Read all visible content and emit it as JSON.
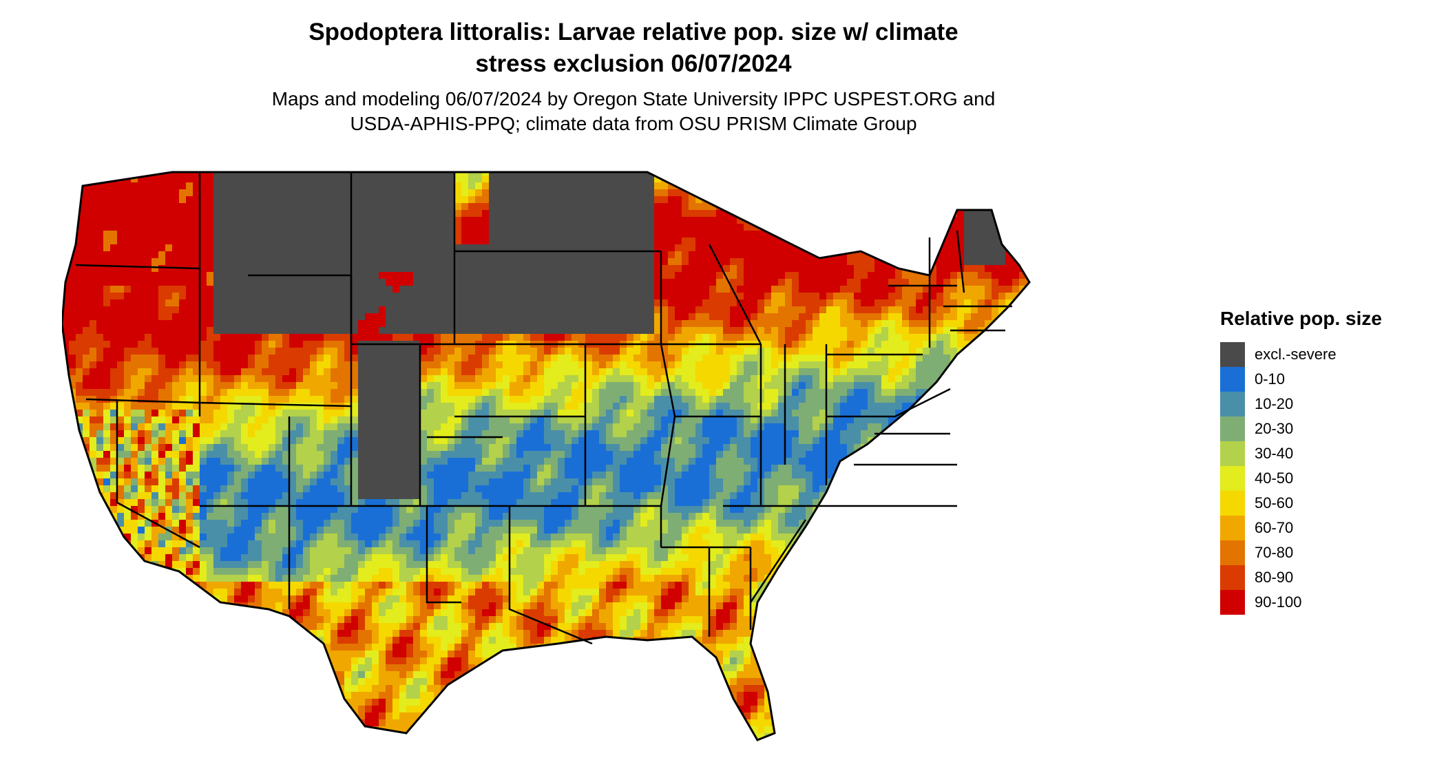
{
  "title_line1": "Spodoptera littoralis: Larvae relative pop. size w/ climate",
  "title_line2": "stress exclusion 06/07/2024",
  "subtitle_line1": "Maps and modeling 06/07/2024 by Oregon State University IPPC USPEST.ORG and",
  "subtitle_line2": "USDA-APHIS-PPQ; climate data from OSU PRISM Climate Group",
  "legend": {
    "title": "Relative pop. size",
    "items": [
      {
        "label": "excl.-severe",
        "color": "#4a4a4a"
      },
      {
        "label": "0-10",
        "color": "#1a6fd6"
      },
      {
        "label": "10-20",
        "color": "#4a8fa8"
      },
      {
        "label": "20-30",
        "color": "#7fae74"
      },
      {
        "label": "30-40",
        "color": "#b3d14a"
      },
      {
        "label": "40-50",
        "color": "#e3ec1c"
      },
      {
        "label": "50-60",
        "color": "#f5d800"
      },
      {
        "label": "60-70",
        "color": "#f0a800"
      },
      {
        "label": "70-80",
        "color": "#e47400"
      },
      {
        "label": "80-90",
        "color": "#da3b00"
      },
      {
        "label": "90-100",
        "color": "#d10000"
      }
    ]
  },
  "map": {
    "state_border_color": "#000000",
    "region_classes": [
      {
        "name": "northern-plains-excluded",
        "class": "excl.-severe"
      },
      {
        "name": "northeast-maine-excluded",
        "class": "excl.-severe"
      },
      {
        "name": "midwest-band",
        "class": "10-20"
      },
      {
        "name": "southeast-band",
        "class": "10-20"
      },
      {
        "name": "south-central-band",
        "class": "80-90"
      },
      {
        "name": "pacific-northwest",
        "class": "90-100"
      },
      {
        "name": "gulf-coast",
        "class": "80-90"
      }
    ]
  }
}
